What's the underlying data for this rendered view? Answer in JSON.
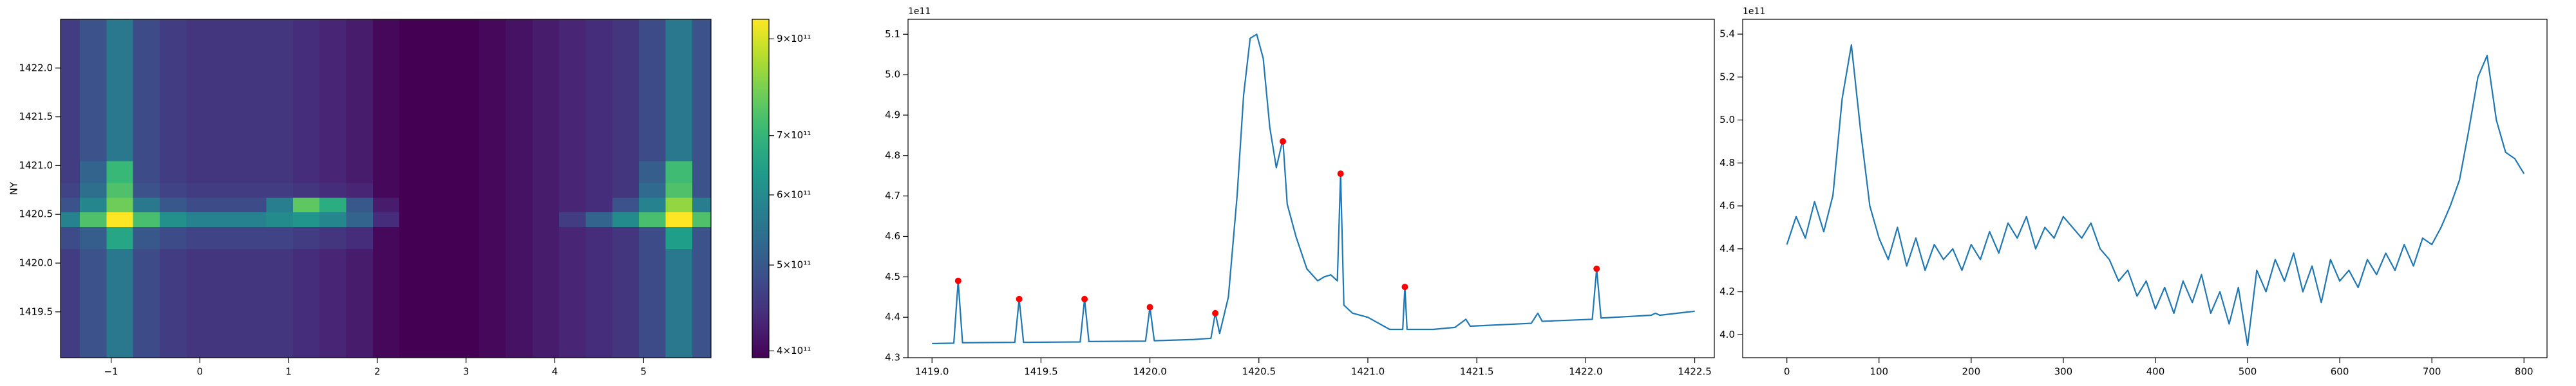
{
  "chart_data": [
    {
      "type": "heatmap",
      "ylabel": "NY",
      "colormap": "viridis",
      "zscale": "log",
      "x": [
        -1.5,
        -1.2,
        -0.9,
        -0.6,
        -0.3,
        0,
        0.3,
        0.6,
        0.9,
        1.2,
        1.5,
        1.8,
        2.1,
        2.4,
        2.7,
        3.0,
        3.3,
        3.6,
        3.9,
        4.2,
        4.5,
        4.8,
        5.1,
        5.4,
        5.7
      ],
      "y": [
        1419.2,
        1419.6,
        1420.0,
        1420.3,
        1420.45,
        1420.6,
        1420.75,
        1420.9,
        1421.2,
        1421.6,
        1422.0,
        1422.4
      ],
      "z": [
        [
          460000000000.0,
          490000000000.0,
          560000000000.0,
          480000000000.0,
          460000000000.0,
          450000000000.0,
          450000000000.0,
          450000000000.0,
          450000000000.0,
          440000000000.0,
          430000000000.0,
          420000000000.0,
          400000000000.0,
          390000000000.0,
          385000000000.0,
          390000000000.0,
          400000000000.0,
          410000000000.0,
          420000000000.0,
          430000000000.0,
          440000000000.0,
          450000000000.0,
          480000000000.0,
          560000000000.0,
          490000000000.0
        ],
        [
          460000000000.0,
          490000000000.0,
          560000000000.0,
          480000000000.0,
          460000000000.0,
          450000000000.0,
          450000000000.0,
          450000000000.0,
          450000000000.0,
          440000000000.0,
          430000000000.0,
          420000000000.0,
          400000000000.0,
          390000000000.0,
          385000000000.0,
          390000000000.0,
          400000000000.0,
          410000000000.0,
          420000000000.0,
          430000000000.0,
          440000000000.0,
          450000000000.0,
          480000000000.0,
          560000000000.0,
          490000000000.0
        ],
        [
          460000000000.0,
          490000000000.0,
          560000000000.0,
          480000000000.0,
          460000000000.0,
          450000000000.0,
          450000000000.0,
          450000000000.0,
          450000000000.0,
          440000000000.0,
          430000000000.0,
          420000000000.0,
          400000000000.0,
          390000000000.0,
          385000000000.0,
          390000000000.0,
          400000000000.0,
          410000000000.0,
          420000000000.0,
          430000000000.0,
          440000000000.0,
          450000000000.0,
          480000000000.0,
          560000000000.0,
          490000000000.0
        ],
        [
          480000000000.0,
          510000000000.0,
          660000000000.0,
          500000000000.0,
          480000000000.0,
          470000000000.0,
          470000000000.0,
          470000000000.0,
          470000000000.0,
          460000000000.0,
          450000000000.0,
          440000000000.0,
          400000000000.0,
          390000000000.0,
          385000000000.0,
          390000000000.0,
          400000000000.0,
          410000000000.0,
          420000000000.0,
          430000000000.0,
          440000000000.0,
          450000000000.0,
          480000000000.0,
          640000000000.0,
          490000000000.0
        ],
        [
          580000000000.0,
          740000000000.0,
          960000000000.0,
          730000000000.0,
          610000000000.0,
          580000000000.0,
          580000000000.0,
          580000000000.0,
          600000000000.0,
          620000000000.0,
          590000000000.0,
          520000000000.0,
          440000000000.0,
          390000000000.0,
          385000000000.0,
          390000000000.0,
          400000000000.0,
          410000000000.0,
          420000000000.0,
          460000000000.0,
          520000000000.0,
          600000000000.0,
          730000000000.0,
          980000000000.0,
          740000000000.0
        ],
        [
          490000000000.0,
          590000000000.0,
          780000000000.0,
          560000000000.0,
          500000000000.0,
          480000000000.0,
          480000000000.0,
          480000000000.0,
          570000000000.0,
          760000000000.0,
          680000000000.0,
          500000000000.0,
          420000000000.0,
          390000000000.0,
          385000000000.0,
          390000000000.0,
          400000000000.0,
          410000000000.0,
          420000000000.0,
          430000000000.0,
          440000000000.0,
          490000000000.0,
          580000000000.0,
          820000000000.0,
          570000000000.0
        ],
        [
          470000000000.0,
          540000000000.0,
          740000000000.0,
          490000000000.0,
          470000000000.0,
          460000000000.0,
          460000000000.0,
          460000000000.0,
          460000000000.0,
          450000000000.0,
          440000000000.0,
          430000000000.0,
          400000000000.0,
          390000000000.0,
          385000000000.0,
          390000000000.0,
          400000000000.0,
          410000000000.0,
          420000000000.0,
          430000000000.0,
          440000000000.0,
          450000000000.0,
          530000000000.0,
          740000000000.0,
          490000000000.0
        ],
        [
          460000000000.0,
          520000000000.0,
          710000000000.0,
          480000000000.0,
          460000000000.0,
          450000000000.0,
          450000000000.0,
          450000000000.0,
          450000000000.0,
          440000000000.0,
          430000000000.0,
          420000000000.0,
          400000000000.0,
          390000000000.0,
          385000000000.0,
          390000000000.0,
          400000000000.0,
          410000000000.0,
          420000000000.0,
          430000000000.0,
          440000000000.0,
          450000000000.0,
          510000000000.0,
          720000000000.0,
          490000000000.0
        ],
        [
          460000000000.0,
          490000000000.0,
          560000000000.0,
          480000000000.0,
          460000000000.0,
          450000000000.0,
          450000000000.0,
          450000000000.0,
          450000000000.0,
          440000000000.0,
          430000000000.0,
          420000000000.0,
          400000000000.0,
          390000000000.0,
          385000000000.0,
          390000000000.0,
          400000000000.0,
          410000000000.0,
          420000000000.0,
          430000000000.0,
          440000000000.0,
          450000000000.0,
          480000000000.0,
          560000000000.0,
          490000000000.0
        ],
        [
          460000000000.0,
          490000000000.0,
          560000000000.0,
          480000000000.0,
          460000000000.0,
          450000000000.0,
          450000000000.0,
          450000000000.0,
          450000000000.0,
          440000000000.0,
          430000000000.0,
          420000000000.0,
          400000000000.0,
          390000000000.0,
          385000000000.0,
          390000000000.0,
          400000000000.0,
          410000000000.0,
          420000000000.0,
          430000000000.0,
          440000000000.0,
          450000000000.0,
          480000000000.0,
          560000000000.0,
          490000000000.0
        ],
        [
          460000000000.0,
          490000000000.0,
          560000000000.0,
          480000000000.0,
          460000000000.0,
          450000000000.0,
          450000000000.0,
          450000000000.0,
          450000000000.0,
          440000000000.0,
          430000000000.0,
          420000000000.0,
          400000000000.0,
          390000000000.0,
          385000000000.0,
          390000000000.0,
          400000000000.0,
          410000000000.0,
          420000000000.0,
          430000000000.0,
          440000000000.0,
          450000000000.0,
          480000000000.0,
          560000000000.0,
          490000000000.0
        ],
        [
          460000000000.0,
          490000000000.0,
          560000000000.0,
          480000000000.0,
          460000000000.0,
          450000000000.0,
          450000000000.0,
          450000000000.0,
          450000000000.0,
          440000000000.0,
          430000000000.0,
          420000000000.0,
          400000000000.0,
          390000000000.0,
          385000000000.0,
          390000000000.0,
          400000000000.0,
          410000000000.0,
          420000000000.0,
          430000000000.0,
          440000000000.0,
          450000000000.0,
          480000000000.0,
          560000000000.0,
          490000000000.0
        ]
      ],
      "xlim": [
        -1.57,
        5.76
      ],
      "ylim": [
        1419.03,
        1422.5
      ],
      "xticks": [
        {
          "value": -1,
          "label": "−1"
        },
        0,
        1,
        2,
        3,
        4,
        5
      ],
      "yticks": [
        1419.5,
        {
          "value": 1420,
          "label": "1420.0"
        },
        1420.5,
        {
          "value": 1421,
          "label": "1421.0"
        },
        1421.5,
        {
          "value": 1422,
          "label": "1422.0"
        }
      ],
      "zlim": [
        393000000000.0,
        947000000000.0
      ],
      "zticks": [
        {
          "value": 400000000000.0,
          "label": "4×10¹¹"
        },
        {
          "value": 500000000000.0,
          "label": "5×10¹¹"
        },
        {
          "value": 600000000000.0,
          "label": "6×10¹¹"
        },
        {
          "value": 700000000000.0,
          "label": "7×10¹¹"
        },
        {
          "value": 900000000000.0,
          "label": "9×10¹¹"
        }
      ]
    },
    {
      "type": "line",
      "offset_text": "1e11",
      "xlim": [
        1418.89,
        1422.59
      ],
      "ylim": [
        4.3,
        5.137
      ],
      "xticks": [
        {
          "value": 1419,
          "label": "1419.0"
        },
        1419.5,
        {
          "value": 1420,
          "label": "1420.0"
        },
        1420.5,
        {
          "value": 1421,
          "label": "1421.0"
        },
        1421.5,
        {
          "value": 1422,
          "label": "1422.0"
        },
        1422.5
      ],
      "yticks": [
        4.3,
        4.4,
        4.5,
        4.6,
        4.7,
        4.8,
        4.9,
        {
          "value": 5,
          "label": "5.0"
        },
        5.1
      ],
      "series": [
        {
          "color": "#1f77b4",
          "style": "line",
          "x": [
            1419.0,
            1419.1,
            1419.12,
            1419.14,
            1419.38,
            1419.4,
            1419.42,
            1419.68,
            1419.7,
            1419.72,
            1419.98,
            1420.0,
            1420.02,
            1420.2,
            1420.28,
            1420.3,
            1420.32,
            1420.36,
            1420.4,
            1420.43,
            1420.46,
            1420.49,
            1420.52,
            1420.55,
            1420.58,
            1420.61,
            1420.63,
            1420.67,
            1420.72,
            1420.77,
            1420.8,
            1420.83,
            1420.86,
            1420.875,
            1420.89,
            1420.93,
            1421.0,
            1421.1,
            1421.16,
            1421.17,
            1421.18,
            1421.3,
            1421.4,
            1421.45,
            1421.47,
            1421.75,
            1421.78,
            1421.8,
            1422.03,
            1422.05,
            1422.07,
            1422.3,
            1422.32,
            1422.34,
            1422.5
          ],
          "values": [
            4.335,
            4.336,
            4.49,
            4.337,
            4.338,
            4.445,
            4.338,
            4.339,
            4.445,
            4.34,
            4.341,
            4.425,
            4.342,
            4.345,
            4.348,
            4.41,
            4.36,
            4.45,
            4.7,
            4.95,
            5.09,
            5.1,
            5.04,
            4.87,
            4.77,
            4.84,
            4.68,
            4.6,
            4.52,
            4.49,
            4.5,
            4.505,
            4.49,
            4.755,
            4.43,
            4.41,
            4.4,
            4.37,
            4.37,
            4.475,
            4.37,
            4.37,
            4.375,
            4.395,
            4.378,
            4.385,
            4.41,
            4.39,
            4.395,
            4.52,
            4.398,
            4.405,
            4.41,
            4.405,
            4.415
          ]
        },
        {
          "color": "#ff0000",
          "style": "markers",
          "x": [
            1419.12,
            1419.4,
            1419.7,
            1420.0,
            1420.3,
            1420.61,
            1420.875,
            1421.17,
            1422.05
          ],
          "values": [
            4.49,
            4.445,
            4.445,
            4.425,
            4.41,
            4.835,
            4.755,
            4.475,
            4.52
          ]
        }
      ]
    },
    {
      "type": "line",
      "offset_text": "1e11",
      "xlim": [
        -48,
        825
      ],
      "ylim": [
        3.893,
        5.469
      ],
      "xticks": [
        0,
        100,
        200,
        300,
        400,
        500,
        600,
        700,
        800
      ],
      "yticks": [
        {
          "value": 4,
          "label": "4.0"
        },
        4.2,
        4.4,
        4.6,
        4.8,
        {
          "value": 5,
          "label": "5.0"
        },
        5.2,
        5.4
      ],
      "series": [
        {
          "color": "#1f77b4",
          "style": "line",
          "x": [
            0,
            10,
            20,
            30,
            40,
            50,
            60,
            70,
            80,
            90,
            100,
            110,
            120,
            130,
            140,
            150,
            160,
            170,
            180,
            190,
            200,
            210,
            220,
            230,
            240,
            250,
            260,
            270,
            280,
            290,
            300,
            310,
            320,
            330,
            340,
            350,
            360,
            370,
            380,
            390,
            400,
            410,
            420,
            430,
            440,
            450,
            460,
            470,
            480,
            490,
            500,
            510,
            520,
            530,
            540,
            550,
            560,
            570,
            580,
            590,
            600,
            610,
            620,
            630,
            640,
            650,
            660,
            670,
            680,
            690,
            700,
            710,
            720,
            730,
            740,
            750,
            760,
            770,
            780,
            790,
            800
          ],
          "values": [
            4.42,
            4.55,
            4.45,
            4.62,
            4.48,
            4.65,
            5.1,
            5.35,
            4.95,
            4.6,
            4.45,
            4.35,
            4.5,
            4.32,
            4.45,
            4.3,
            4.42,
            4.35,
            4.4,
            4.3,
            4.42,
            4.35,
            4.48,
            4.38,
            4.52,
            4.45,
            4.55,
            4.4,
            4.5,
            4.45,
            4.55,
            4.5,
            4.45,
            4.52,
            4.4,
            4.35,
            4.25,
            4.3,
            4.18,
            4.25,
            4.12,
            4.22,
            4.1,
            4.25,
            4.15,
            4.28,
            4.1,
            4.2,
            4.05,
            4.22,
            3.95,
            4.3,
            4.2,
            4.35,
            4.25,
            4.38,
            4.2,
            4.32,
            4.15,
            4.35,
            4.25,
            4.3,
            4.22,
            4.35,
            4.28,
            4.38,
            4.3,
            4.42,
            4.32,
            4.45,
            4.42,
            4.5,
            4.6,
            4.72,
            4.95,
            5.2,
            5.3,
            5.0,
            4.85,
            4.82,
            4.75
          ]
        }
      ]
    }
  ]
}
